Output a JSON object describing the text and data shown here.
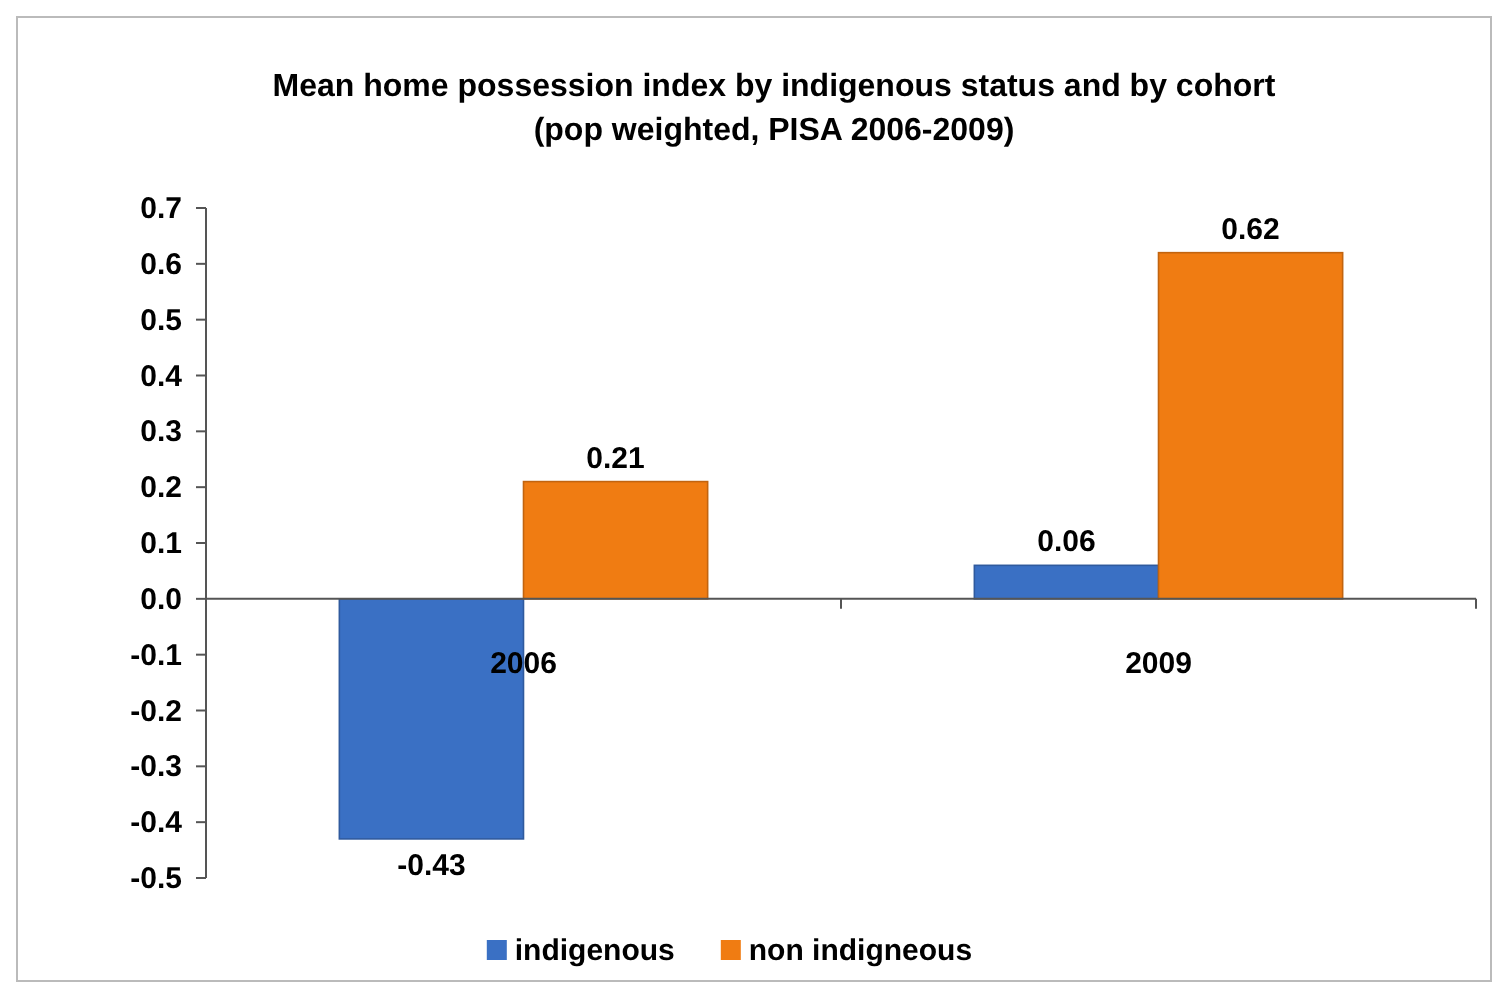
{
  "chart_data": {
    "type": "bar",
    "title": "Mean home possession index by indigenous status and by cohort\n(pop weighted, PISA 2006-2009)",
    "categories": [
      "2006",
      "2009"
    ],
    "series": [
      {
        "name": "indigenous",
        "color": "#3a70c4",
        "values": [
          -0.43,
          0.06
        ]
      },
      {
        "name": "non indigneous",
        "color": "#f07c12",
        "values": [
          0.21,
          0.62
        ]
      }
    ],
    "ylim": [
      -0.5,
      0.7
    ],
    "yticks": [
      {
        "value": -0.5,
        "label": "-0.5"
      },
      {
        "value": -0.4,
        "label": "-0.4"
      },
      {
        "value": -0.3,
        "label": "-0.3"
      },
      {
        "value": -0.2,
        "label": "-0.2"
      },
      {
        "value": -0.1,
        "label": "-0.1"
      },
      {
        "value": 0,
        "label": "0.0"
      },
      {
        "value": 0.1,
        "label": "0.1"
      },
      {
        "value": 0.2,
        "label": "0.2"
      },
      {
        "value": 0.3,
        "label": "0.3"
      },
      {
        "value": 0.4,
        "label": "0.4"
      },
      {
        "value": 0.5,
        "label": "0.5"
      },
      {
        "value": 0.6,
        "label": "0.6"
      },
      {
        "value": 0.7,
        "label": "0.7"
      }
    ],
    "data_labels": true,
    "grid": false,
    "legend": "bottom"
  }
}
